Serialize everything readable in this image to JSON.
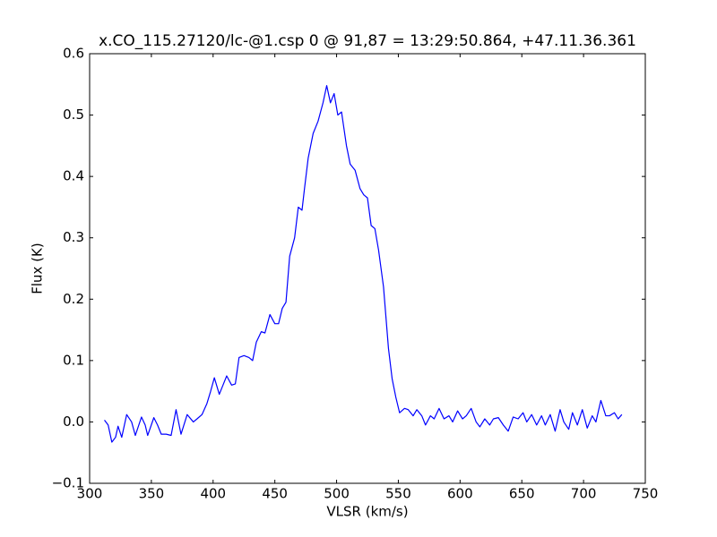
{
  "chart_data": {
    "type": "line",
    "title": "x.CO_115.27120/lc-@1.csp 0 @ 91,87 = 13:29:50.864, +47.11.36.361",
    "x_label": "VLSR (km/s)",
    "y_label": "Flux (K)",
    "color": "#0000ff",
    "xlim": [
      300,
      750
    ],
    "xticks": [
      300,
      350,
      400,
      450,
      500,
      550,
      600,
      650,
      700,
      750
    ],
    "ylim": [
      -0.1,
      0.6
    ],
    "yticks": [
      {
        "value": -0.1,
        "label": "−0.1"
      },
      {
        "value": 0,
        "label": "0.0"
      },
      0.1,
      0.2,
      0.3,
      0.4,
      0.5,
      0.6
    ],
    "x": [
      312,
      315,
      318,
      321,
      323,
      326,
      330,
      334,
      337,
      342,
      345,
      347,
      352,
      355,
      358,
      362,
      366,
      370,
      374,
      379,
      384,
      387,
      391,
      395,
      398,
      401,
      405,
      408,
      411,
      415,
      418,
      421,
      425,
      429,
      432,
      435,
      439,
      442,
      446,
      450,
      453,
      456,
      459,
      462,
      466,
      469,
      472,
      474,
      477,
      481,
      485,
      489,
      492,
      495,
      498,
      501,
      504,
      508,
      511,
      515,
      519,
      522,
      525,
      528,
      531,
      534,
      538,
      542,
      545,
      548,
      551,
      555,
      558,
      562,
      565,
      569,
      572,
      576,
      579,
      583,
      587,
      591,
      594,
      598,
      602,
      605,
      609,
      613,
      616,
      620,
      624,
      627,
      631,
      635,
      639,
      643,
      647,
      651,
      654,
      658,
      662,
      666,
      669,
      673,
      677,
      681,
      684,
      688,
      691,
      695,
      699,
      703,
      707,
      710,
      714,
      718,
      721,
      725,
      728,
      731
    ],
    "values": [
      0.003,
      -0.005,
      -0.033,
      -0.025,
      -0.007,
      -0.025,
      0.012,
      0.0,
      -0.022,
      0.008,
      -0.005,
      -0.022,
      0.007,
      -0.005,
      -0.02,
      -0.02,
      -0.022,
      0.02,
      -0.02,
      0.012,
      0.0,
      0.005,
      0.012,
      0.03,
      0.05,
      0.072,
      0.045,
      0.06,
      0.075,
      0.06,
      0.062,
      0.105,
      0.108,
      0.105,
      0.1,
      0.13,
      0.147,
      0.145,
      0.175,
      0.16,
      0.16,
      0.185,
      0.195,
      0.27,
      0.3,
      0.35,
      0.345,
      0.38,
      0.43,
      0.47,
      0.49,
      0.52,
      0.548,
      0.52,
      0.535,
      0.5,
      0.505,
      0.45,
      0.42,
      0.41,
      0.38,
      0.37,
      0.365,
      0.32,
      0.315,
      0.28,
      0.22,
      0.12,
      0.07,
      0.04,
      0.015,
      0.022,
      0.02,
      0.01,
      0.02,
      0.01,
      -0.005,
      0.01,
      0.005,
      0.022,
      0.005,
      0.01,
      0.0,
      0.018,
      0.005,
      0.01,
      0.022,
      0.0,
      -0.008,
      0.005,
      -0.005,
      0.005,
      0.007,
      -0.005,
      -0.015,
      0.008,
      0.005,
      0.015,
      0.0,
      0.012,
      -0.005,
      0.01,
      -0.005,
      0.012,
      -0.015,
      0.02,
      0.0,
      -0.012,
      0.015,
      -0.005,
      0.02,
      -0.01,
      0.01,
      0.0,
      0.035,
      0.01,
      0.01,
      0.015,
      0.005,
      0.012
    ]
  }
}
